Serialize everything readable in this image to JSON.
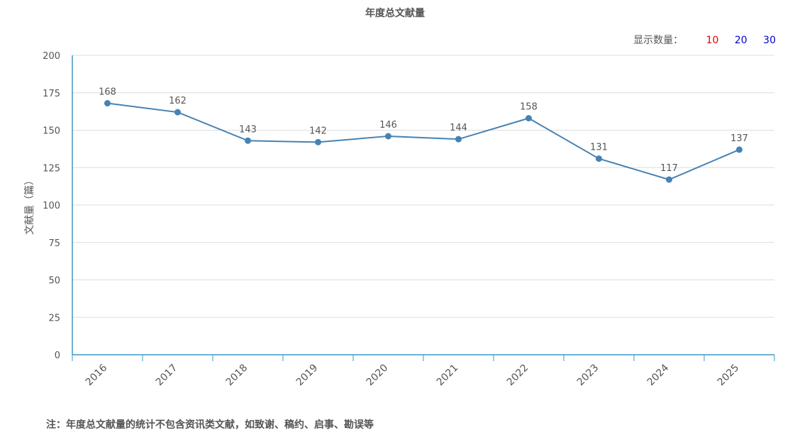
{
  "title": "年度总文献量",
  "count_selector": {
    "label": "显示数量：",
    "options": [
      {
        "label": "10",
        "color": "#e60000"
      },
      {
        "label": "20",
        "color": "#0000cc"
      },
      {
        "label": "30",
        "color": "#0000cc"
      }
    ]
  },
  "footnote": "注：年度总文献量的统计不包含资讯类文献，如致谢、稿约、启事、勘误等",
  "chart_data": {
    "type": "line",
    "title": "年度总文献量",
    "xlabel": "",
    "ylabel": "文献量（篇）",
    "categories": [
      "2016",
      "2017",
      "2018",
      "2019",
      "2020",
      "2021",
      "2022",
      "2023",
      "2024",
      "2025"
    ],
    "series": [
      {
        "values": [
          168,
          162,
          143,
          142,
          146,
          144,
          158,
          131,
          117,
          137
        ]
      }
    ],
    "ylim": [
      0,
      200
    ],
    "yticks": [
      0,
      25,
      50,
      75,
      100,
      125,
      150,
      175,
      200
    ],
    "grid": true,
    "data_labels": true,
    "colors": {
      "line": "#4682b4",
      "axis": "#3a98c6",
      "grid": "#dddddd",
      "text": "#555555"
    }
  }
}
